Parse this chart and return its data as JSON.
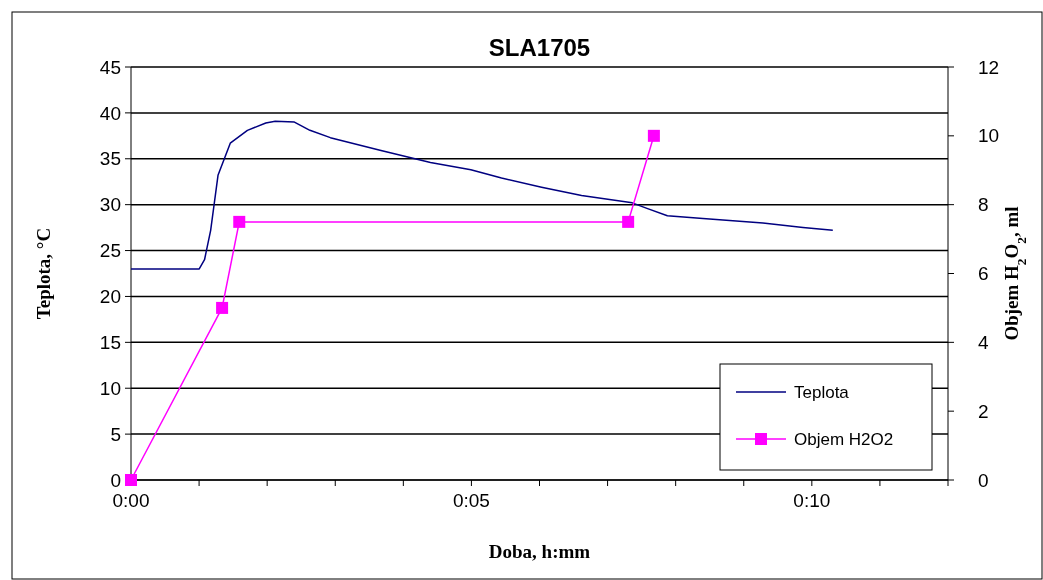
{
  "chart_data": {
    "type": "line",
    "title": "SLA1705",
    "xlabel": "Doba, h:mm",
    "ylabel": "Teplota, °C",
    "y2label": "Objem H$_{2}$O$_{2}$, ml",
    "xlim": [
      0,
      0.2
    ],
    "xticks": [
      {
        "value": 0,
        "label": "0:00"
      },
      {
        "value": 0.016667,
        "label": null
      },
      {
        "value": 0.033333,
        "label": null
      },
      {
        "value": 0.05,
        "label": null
      },
      {
        "value": 0.066667,
        "label": null
      },
      {
        "value": 0.083333,
        "label": "0:05"
      },
      {
        "value": 0.1,
        "label": null
      },
      {
        "value": 0.116667,
        "label": null
      },
      {
        "value": 0.133333,
        "label": null
      },
      {
        "value": 0.15,
        "label": null
      },
      {
        "value": 0.166667,
        "label": "0:10"
      },
      {
        "value": 0.183333,
        "label": null
      },
      {
        "value": 0.2,
        "label": null
      }
    ],
    "ylim": [
      0,
      45
    ],
    "yticks": [
      0,
      5,
      10,
      15,
      20,
      25,
      30,
      35,
      40,
      45
    ],
    "y2lim": [
      0,
      12
    ],
    "y2ticks": [
      0,
      2,
      4,
      6,
      8,
      10,
      12
    ],
    "grid": "y",
    "legend": "bottom right",
    "series": [
      {
        "name": "Teplota",
        "color": "#000080",
        "marker": "none",
        "x": [
          0,
          0.0167,
          0.018,
          0.0195,
          0.0213,
          0.0243,
          0.0285,
          0.033,
          0.0353,
          0.04,
          0.0438,
          0.0488,
          0.0612,
          0.0733,
          0.0832,
          0.0907,
          0.1005,
          0.1103,
          0.1227,
          0.1263,
          0.1313,
          0.14,
          0.1547,
          0.1645,
          0.1718
        ],
        "values": [
          23,
          23,
          24,
          27.2,
          33.2,
          36.7,
          38.1,
          38.9,
          39.1,
          39,
          38.1,
          37.3,
          35.9,
          34.6,
          33.8,
          32.9,
          31.9,
          31,
          30.2,
          29.6,
          28.8,
          28.5,
          28,
          27.5,
          27.2
        ]
      },
      {
        "name": "Objem H2O2",
        "color": "#ff00ff",
        "marker": "square",
        "axis": "y2",
        "x": [
          0,
          0.0223,
          0.0265,
          0.1217,
          0.128
        ],
        "values": [
          0,
          5,
          7.5,
          7.5,
          10
        ]
      }
    ]
  }
}
